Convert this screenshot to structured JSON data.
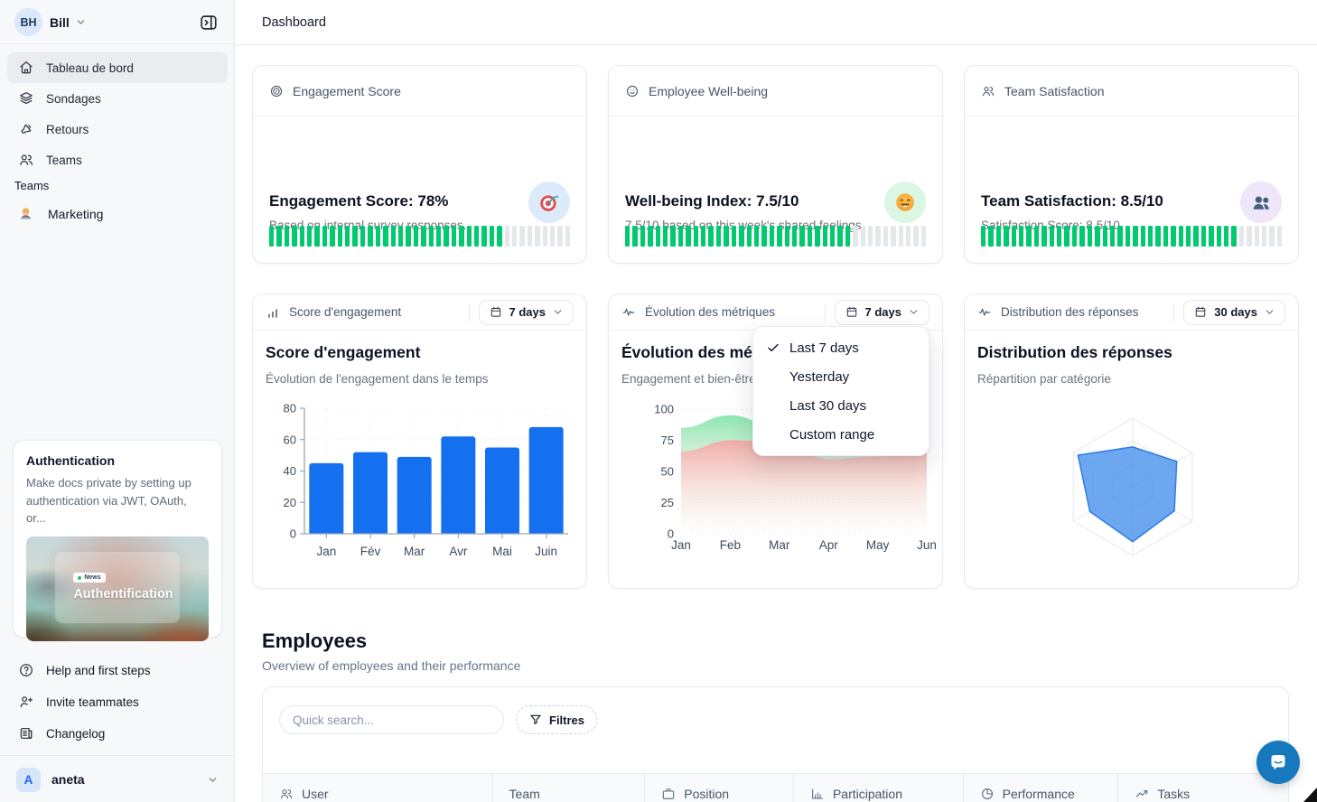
{
  "header": {
    "title": "Dashboard"
  },
  "sidebar": {
    "user": {
      "initials": "BH",
      "name": "Bill"
    },
    "nav": [
      {
        "label": "Tableau de bord",
        "icon": "home-icon",
        "active": true
      },
      {
        "label": "Sondages",
        "icon": "layers-icon"
      },
      {
        "label": "Retours",
        "icon": "megaphone-icon"
      },
      {
        "label": "Teams",
        "icon": "users-icon"
      }
    ],
    "section": "Teams",
    "teams": [
      {
        "label": "Marketing",
        "icon": "technologist-emoji"
      }
    ],
    "auth": {
      "title": "Authentication",
      "body": "Make docs private by setting up authentication via JWT, OAuth, or...",
      "badge": "News",
      "image_title": "Authentification"
    },
    "footer": [
      {
        "label": "Help and first steps",
        "icon": "help-circle-icon"
      },
      {
        "label": "Invite teammates",
        "icon": "user-plus-icon"
      },
      {
        "label": "Changelog",
        "icon": "newspaper-icon"
      }
    ],
    "workspace": {
      "initial": "A",
      "name": "aneta"
    }
  },
  "stat_cards": [
    {
      "header": "Engagement Score",
      "header_icon": "target-rings-icon",
      "title": "Engagement Score: 78%",
      "subtitle": "Based on internal survey responses.",
      "emoji": "dart-target",
      "emoji_bg": "#DCEBFB",
      "progress": {
        "on": 31,
        "total": 40
      }
    },
    {
      "header": "Employee Well-being",
      "header_icon": "smiley-icon",
      "title": "Well-being Index: 7.5/10",
      "subtitle": "7.5/10 based on this week's shared feelings.",
      "emoji": "smiling-face",
      "emoji_bg": "#DCF6E4",
      "progress": {
        "on": 30,
        "total": 40
      }
    },
    {
      "header": "Team Satisfaction",
      "header_icon": "users-icon",
      "title": "Team Satisfaction: 8.5/10",
      "subtitle": "Satisfaction Score: 8.5/10",
      "emoji": "busts-in-silhouette",
      "emoji_bg": "#EEE6F9",
      "progress": {
        "on": 34,
        "total": 40
      }
    }
  ],
  "chart_cards": [
    {
      "label": "Score d'engagement",
      "range": "7 days",
      "icon": "mini-bar-chart-icon"
    },
    {
      "label": "Évolution des métriques",
      "range": "7 days",
      "icon": "activity-icon"
    },
    {
      "label": "Distribution des réponses",
      "range": "30 days",
      "icon": "activity-icon"
    }
  ],
  "menu": {
    "items": [
      {
        "label": "Last 7 days",
        "checked": true
      },
      {
        "label": "Yesterday",
        "checked": false
      },
      {
        "label": "Last 30 days",
        "checked": false
      },
      {
        "label": "Custom range",
        "checked": false
      }
    ]
  },
  "chart_data": [
    {
      "type": "bar",
      "title": "Score d'engagement",
      "subtitle": "Évolution de l'engagement dans le temps",
      "categories": [
        "Jan",
        "Fév",
        "Mar",
        "Avr",
        "Mai",
        "Juin"
      ],
      "values": [
        45,
        52,
        49,
        62,
        55,
        68
      ],
      "ylim": [
        0,
        80
      ],
      "yticks": [
        0,
        20,
        40,
        60,
        80
      ],
      "bar_color": "#1570EF",
      "grid": "dotted"
    },
    {
      "type": "area",
      "title": "Évolution des métriques",
      "subtitle": "Engagement et bien-être",
      "x": [
        "Jan",
        "Feb",
        "Mar",
        "Apr",
        "May",
        "Jun"
      ],
      "series": [
        {
          "name": "Engagement",
          "color": "#86E7AD",
          "values": [
            85,
            95,
            85,
            66,
            70,
            75
          ]
        },
        {
          "name": "Bien-être",
          "color": "#EDA39C",
          "values": [
            66,
            75,
            74,
            60,
            62,
            65
          ]
        }
      ],
      "ylim": [
        0,
        100
      ],
      "yticks": [
        0,
        25,
        50,
        75,
        100
      ],
      "grid": "dashed"
    },
    {
      "type": "radar",
      "title": "Distribution des réponses",
      "subtitle": "Répartition par catégorie",
      "axes": 6,
      "rings": 3,
      "max": 1,
      "values": [
        0.58,
        0.74,
        0.7,
        0.8,
        0.72,
        0.92
      ],
      "fill": "#4D94ED",
      "stroke": "#2F7BE8"
    }
  ],
  "employees": {
    "title": "Employees",
    "subtitle": "Overview of employees and their performance",
    "search_placeholder": "Quick search...",
    "filter": "Filtres",
    "columns": [
      {
        "label": "User",
        "icon": "users-icon"
      },
      {
        "label": "Team",
        "icon": ""
      },
      {
        "label": "Position",
        "icon": "briefcase-icon"
      },
      {
        "label": "Participation",
        "icon": "bar-chart-icon"
      },
      {
        "label": "Performance",
        "icon": "pie-chart-icon"
      },
      {
        "label": "Tasks",
        "icon": "trend-up-icon"
      }
    ]
  },
  "colors": {
    "progress_green": "#00C96E",
    "bar_blue": "#1570EF",
    "radar_blue": "#2F7BE8",
    "chat_blue": "#1679BE",
    "area_green": "#86E7AD",
    "area_pink": "#EDA39C"
  }
}
